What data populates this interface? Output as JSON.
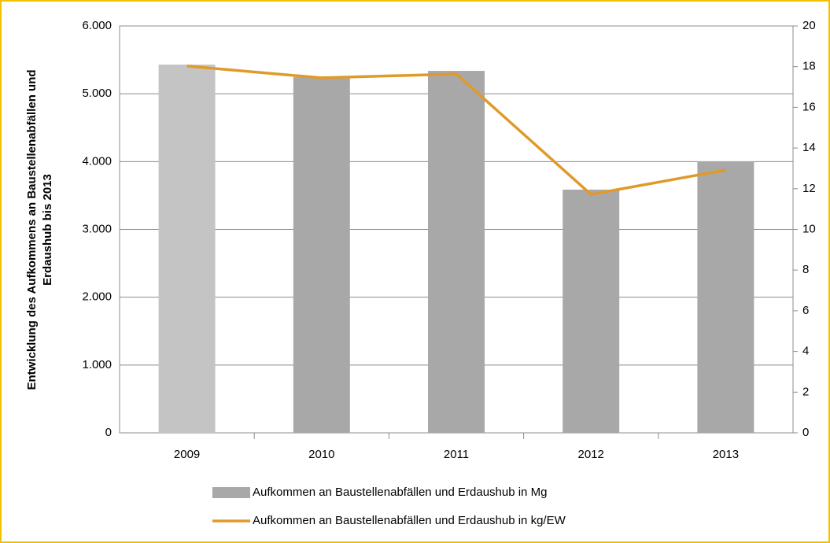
{
  "chart_data": {
    "type": "bar_line",
    "ylabel_lines": [
      "Entwicklung des Aufkommens an Baustellenabfällen  und",
      "Erdaushub bis 2013"
    ],
    "categories": [
      "2009",
      "2010",
      "2011",
      "2012",
      "2013"
    ],
    "series": [
      {
        "name": "Aufkommen an Baustellenabfällen und Erdaushub in Mg",
        "type": "bar",
        "color": "#a8a8a8",
        "colors": [
          "#c4c4c4",
          "#a8a8a8",
          "#a8a8a8",
          "#a8a8a8",
          "#a8a8a8"
        ],
        "values": [
          5430,
          5245,
          5338,
          3586,
          4004
        ]
      },
      {
        "name": "Aufkommen an Baustellenabfällen und Erdaushub in kg/EW",
        "type": "line",
        "axis": "y2",
        "color": "#e09a2a",
        "values": [
          18.03,
          17.45,
          17.64,
          11.72,
          12.92
        ]
      }
    ],
    "ylim": [
      0,
      6000
    ],
    "yticks": [
      0,
      {
        "value": 1000,
        "label": "1.000"
      },
      {
        "value": 2000,
        "label": "2.000"
      },
      {
        "value": 3000,
        "label": "3.000"
      },
      {
        "value": 4000,
        "label": "4.000"
      },
      {
        "value": 5000,
        "label": "5.000"
      },
      {
        "value": 6000,
        "label": "6.000"
      }
    ],
    "y2lim": [
      0,
      20
    ],
    "y2ticks": [
      0,
      2,
      4,
      6,
      8,
      10,
      12,
      14,
      16,
      18,
      20
    ],
    "grid": true
  }
}
